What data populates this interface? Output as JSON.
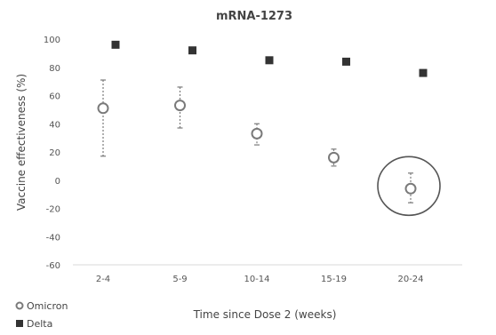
{
  "chart_data": {
    "type": "scatter",
    "title": "mRNA-1273",
    "xlabel": "Time since Dose 2 (weeks)",
    "ylabel": "Vaccine effectiveness (%)",
    "categories": [
      "2-4",
      "5-9",
      "10-14",
      "15-19",
      "20-24"
    ],
    "ylim": [
      -60,
      100
    ],
    "yticks": [
      100,
      80,
      60,
      40,
      20,
      0,
      -20,
      -40,
      -60
    ],
    "grid": false,
    "legend_position": "bottom-left",
    "series": [
      {
        "name": "Omicron",
        "marker": "open-circle",
        "color": "#7a7a7a",
        "values": [
          51,
          53,
          33,
          16,
          -6
        ],
        "error_low": [
          17,
          37,
          25,
          10,
          -16
        ],
        "error_high": [
          71,
          66,
          40,
          22,
          5
        ]
      },
      {
        "name": "Delta",
        "marker": "filled-square",
        "color": "#333333",
        "values": [
          96,
          92,
          85,
          84,
          76
        ]
      }
    ],
    "annotations": [
      {
        "type": "ellipse-highlight",
        "category": "20-24",
        "series": "Omicron"
      }
    ]
  }
}
